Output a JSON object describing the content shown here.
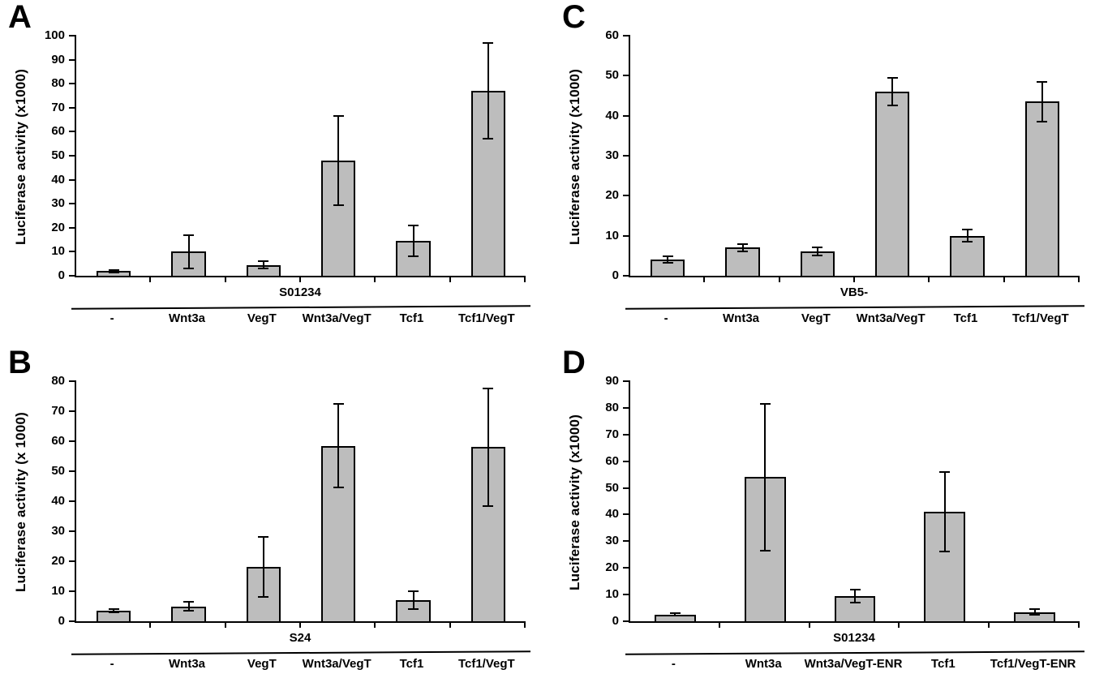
{
  "figure_title": "",
  "colors": {
    "bar_fill": "#bdbdbd",
    "axis": "#000000",
    "background": "#ffffff"
  },
  "chart_data": [
    {
      "panel": "A",
      "type": "bar",
      "title": "",
      "ylabel": "Luciferase activity (x1000)",
      "xlabel": "",
      "ylim": [
        0,
        100
      ],
      "ytick_step": 10,
      "grid": false,
      "legend": false,
      "group_label": "S01234",
      "categories": [
        "-",
        "Wnt3a",
        "VegT",
        "Wnt3a/VegT",
        "Tcf1",
        "Tcf1/VegT"
      ],
      "values": [
        2,
        10,
        4.5,
        48,
        14.5,
        77
      ],
      "errors": [
        0.5,
        7,
        1.5,
        18.5,
        6.5,
        20
      ],
      "bar_color": "#bdbdbd"
    },
    {
      "panel": "B",
      "type": "bar",
      "title": "",
      "ylabel": "Luciferase activity (x 1000)",
      "xlabel": "",
      "ylim": [
        0,
        80
      ],
      "ytick_step": 10,
      "grid": false,
      "legend": false,
      "group_label": "S24",
      "categories": [
        "-",
        "Wnt3a",
        "VegT",
        "Wnt3a/VegT",
        "Tcf1",
        "Tcf1/VegT"
      ],
      "values": [
        3.5,
        5,
        18,
        58.5,
        7,
        58
      ],
      "errors": [
        0.5,
        1.5,
        10,
        14,
        3,
        19.5
      ],
      "bar_color": "#bdbdbd"
    },
    {
      "panel": "C",
      "type": "bar",
      "title": "",
      "ylabel": "Luciferase activity (x1000)",
      "xlabel": "",
      "ylim": [
        0,
        60
      ],
      "ytick_step": 10,
      "grid": false,
      "legend": false,
      "group_label": "VB5-",
      "categories": [
        "-",
        "Wnt3a",
        "VegT",
        "Wnt3a/VegT",
        "Tcf1",
        "Tcf1/VegT"
      ],
      "values": [
        4,
        7,
        6,
        46,
        10,
        43.5
      ],
      "errors": [
        0.8,
        1,
        1,
        3.5,
        1.5,
        5
      ],
      "bar_color": "#bdbdbd"
    },
    {
      "panel": "D",
      "type": "bar",
      "title": "",
      "ylabel": "Luciferase activity (x1000)",
      "xlabel": "",
      "ylim": [
        0,
        90
      ],
      "ytick_step": 10,
      "grid": false,
      "legend": false,
      "group_label": "S01234",
      "categories": [
        "-",
        "Wnt3a",
        "Wnt3a/VegT-ENR",
        "Tcf1",
        "Tcf1/VegT-ENR"
      ],
      "values": [
        2.5,
        54,
        9.5,
        41,
        3.5
      ],
      "errors": [
        0.5,
        27.5,
        2.5,
        15,
        1
      ],
      "bar_color": "#bdbdbd"
    }
  ]
}
